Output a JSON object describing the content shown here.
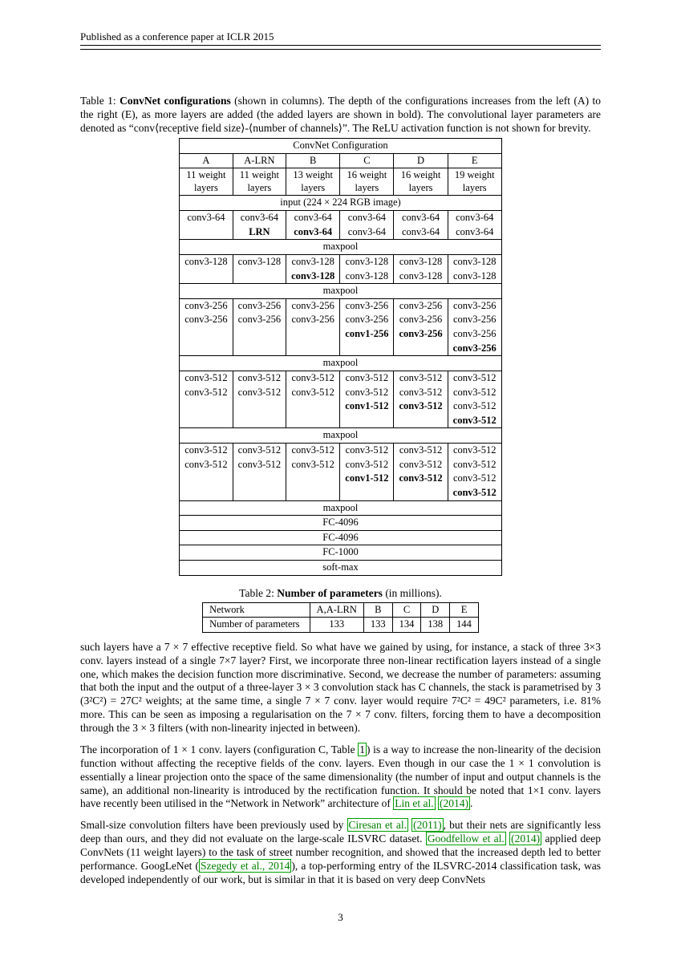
{
  "header": "Published as a conference paper at ICLR 2015",
  "table1": {
    "caption_pre": "Table 1: ",
    "caption_bold": "ConvNet configurations",
    "caption_post": " (shown in columns). The depth of the configurations increases from the left (A) to the right (E), as more layers are added (the added layers are shown in bold). The convolutional layer parameters are denoted as “conv⟨receptive field size⟩-⟨number of channels⟩”. The ReLU activation function is not shown for brevity.",
    "super_header": "ConvNet Configuration",
    "cols": [
      "A",
      "A-LRN",
      "B",
      "C",
      "D",
      "E"
    ],
    "depths": [
      "11 weight layers",
      "11 weight layers",
      "13 weight layers",
      "16 weight layers",
      "16 weight layers",
      "19 weight layers"
    ],
    "input_row": "input (224 × 224 RGB image)",
    "blocks": [
      [
        [
          "conv3-64",
          "conv3-64",
          "conv3-64",
          "conv3-64",
          "conv3-64",
          "conv3-64"
        ],
        [
          "",
          {
            "t": "LRN",
            "b": true
          },
          {
            "t": "conv3-64",
            "b": true
          },
          "conv3-64",
          "conv3-64",
          "conv3-64"
        ]
      ],
      [
        [
          "conv3-128",
          "conv3-128",
          "conv3-128",
          "conv3-128",
          "conv3-128",
          "conv3-128"
        ],
        [
          "",
          "",
          {
            "t": "conv3-128",
            "b": true
          },
          "conv3-128",
          "conv3-128",
          "conv3-128"
        ]
      ],
      [
        [
          "conv3-256",
          "conv3-256",
          "conv3-256",
          "conv3-256",
          "conv3-256",
          "conv3-256"
        ],
        [
          "conv3-256",
          "conv3-256",
          "conv3-256",
          "conv3-256",
          "conv3-256",
          "conv3-256"
        ],
        [
          "",
          "",
          "",
          {
            "t": "conv1-256",
            "b": true
          },
          {
            "t": "conv3-256",
            "b": true
          },
          "conv3-256"
        ],
        [
          "",
          "",
          "",
          "",
          "",
          {
            "t": "conv3-256",
            "b": true
          }
        ]
      ],
      [
        [
          "conv3-512",
          "conv3-512",
          "conv3-512",
          "conv3-512",
          "conv3-512",
          "conv3-512"
        ],
        [
          "conv3-512",
          "conv3-512",
          "conv3-512",
          "conv3-512",
          "conv3-512",
          "conv3-512"
        ],
        [
          "",
          "",
          "",
          {
            "t": "conv1-512",
            "b": true
          },
          {
            "t": "conv3-512",
            "b": true
          },
          "conv3-512"
        ],
        [
          "",
          "",
          "",
          "",
          "",
          {
            "t": "conv3-512",
            "b": true
          }
        ]
      ],
      [
        [
          "conv3-512",
          "conv3-512",
          "conv3-512",
          "conv3-512",
          "conv3-512",
          "conv3-512"
        ],
        [
          "conv3-512",
          "conv3-512",
          "conv3-512",
          "conv3-512",
          "conv3-512",
          "conv3-512"
        ],
        [
          "",
          "",
          "",
          {
            "t": "conv1-512",
            "b": true
          },
          {
            "t": "conv3-512",
            "b": true
          },
          "conv3-512"
        ],
        [
          "",
          "",
          "",
          "",
          "",
          {
            "t": "conv3-512",
            "b": true
          }
        ]
      ]
    ],
    "maxpool": "maxpool",
    "footer": [
      "FC-4096",
      "FC-4096",
      "FC-1000",
      "soft-max"
    ]
  },
  "table2": {
    "caption_pre": "Table 2: ",
    "caption_bold": "Number of parameters",
    "caption_post": " (in millions).",
    "row1": [
      "Network",
      "A,A-LRN",
      "B",
      "C",
      "D",
      "E"
    ],
    "row2": [
      "Number of parameters",
      "133",
      "133",
      "134",
      "138",
      "144"
    ]
  },
  "para1": "such layers have a 7 × 7 effective receptive field. So what have we gained by using, for instance, a stack of three 3×3 conv. layers instead of a single 7×7 layer? First, we incorporate three non-linear rectification layers instead of a single one, which makes the decision function more discriminative. Second, we decrease the number of parameters: assuming that both the input and the output of a three-layer 3 × 3 convolution stack has C channels, the stack is parametrised by 3 (3²C²) = 27C² weights; at the same time, a single 7 × 7 conv. layer would require 7²C² = 49C² parameters, i.e. 81% more. This can be seen as imposing a regularisation on the 7 × 7 conv. filters, forcing them to have a decomposition through the 3 × 3 filters (with non-linearity injected in between).",
  "para2_a": "The incorporation of 1 × 1 conv. layers (configuration C, Table ",
  "para2_link1": "1",
  "para2_b": ") is a way to increase the non-linearity of the decision function without affecting the receptive fields of the conv. layers. Even though in our case the 1 × 1 convolution is essentially a linear projection onto the space of the same dimensionality (the number of input and output channels is the same), an additional non-linearity is introduced by the rectification function. It should be noted that 1×1 conv. layers have recently been utilised in the “Network in Network” architecture of ",
  "para2_link2": "Lin et al.",
  "para2_link2b": "(2014)",
  "para2_c": ".",
  "para3_a": "Small-size convolution filters have been previously used by ",
  "para3_l1": "Ciresan et al.",
  "para3_l1b": "(2011)",
  "para3_b": ", but their nets are significantly less deep than ours, and they did not evaluate on the large-scale ILSVRC dataset. ",
  "para3_l2": "Goodfellow et al.",
  "para3_l2b": "(2014)",
  "para3_c": " applied deep ConvNets (11 weight layers) to the task of street number recognition, and showed that the increased depth led to better performance. GoogLeNet (",
  "para3_l3": "Szegedy et al., 2014",
  "para3_d": "), a top-performing entry of the ILSVRC-2014 classification task, was developed independently of our work, but is similar in that it is based on very deep ConvNets",
  "pagenum": "3"
}
